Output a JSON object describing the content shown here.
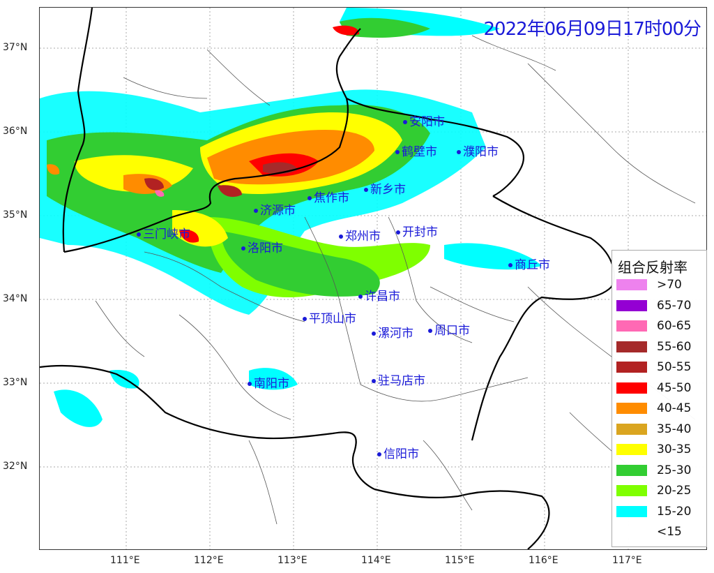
{
  "map": {
    "timestamp": "2022年06月09日17时00分",
    "lat_labels": [
      "37°N",
      "36°N",
      "35°N",
      "34°N",
      "33°N",
      "32°N"
    ],
    "lon_labels": [
      "111°E",
      "112°E",
      "113°E",
      "114°E",
      "115°E",
      "116°E",
      "117°E"
    ],
    "cities": [
      {
        "name": "安阳市"
      },
      {
        "name": "鹤壁市"
      },
      {
        "name": "濮阳市"
      },
      {
        "name": "新乡市"
      },
      {
        "name": "焦作市"
      },
      {
        "name": "济源市"
      },
      {
        "name": "三门峡市"
      },
      {
        "name": "郑州市"
      },
      {
        "name": "开封市"
      },
      {
        "name": "洛阳市"
      },
      {
        "name": "商丘市"
      },
      {
        "name": "许昌市"
      },
      {
        "name": "平顶山市"
      },
      {
        "name": "漯河市"
      },
      {
        "name": "周口市"
      },
      {
        "name": "南阳市"
      },
      {
        "name": "驻马店市"
      },
      {
        "name": "信阳市"
      }
    ]
  },
  "legend": {
    "title": "组合反射率",
    "items": [
      {
        "label": ">70",
        "color": "#ee82ee"
      },
      {
        "label": "65-70",
        "color": "#9400d3"
      },
      {
        "label": "60-65",
        "color": "#ff69b4"
      },
      {
        "label": "55-60",
        "color": "#a52a2a"
      },
      {
        "label": "50-55",
        "color": "#b22222"
      },
      {
        "label": "45-50",
        "color": "#ff0000"
      },
      {
        "label": "40-45",
        "color": "#ff8c00"
      },
      {
        "label": "35-40",
        "color": "#daa520"
      },
      {
        "label": "30-35",
        "color": "#ffff00"
      },
      {
        "label": "25-30",
        "color": "#32cd32"
      },
      {
        "label": "20-25",
        "color": "#7fff00"
      },
      {
        "label": "15-20",
        "color": "#00ffff"
      },
      {
        "label": "<15",
        "color": "#ffffff"
      }
    ]
  }
}
